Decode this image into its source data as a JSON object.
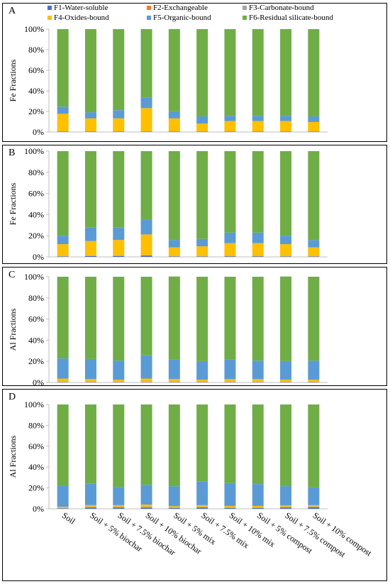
{
  "legend": {
    "items": [
      {
        "label": "F1-Water-soluble",
        "color": "#4472C4"
      },
      {
        "label": "F2-Exchangeable",
        "color": "#ED7D31"
      },
      {
        "label": "F3-Carbonate-bound",
        "color": "#A5A5A5"
      },
      {
        "label": "F4-Oxides-bound",
        "color": "#FFC000"
      },
      {
        "label": "F5-Organic-bound",
        "color": "#5B9BD5"
      },
      {
        "label": "F6-Residual silicate-bound",
        "color": "#70AD47"
      }
    ]
  },
  "chart_data": [
    {
      "type": "bar",
      "stacked": true,
      "panel_label": "A",
      "ylabel": "Fe Fractions",
      "yticks": [
        "0%",
        "20%",
        "40%",
        "60%",
        "80%",
        "100%"
      ],
      "ylim": [
        0,
        100
      ],
      "grid": false,
      "categories": [
        "Soil",
        "Soil + 5% biochar",
        "Soil + 7.5% biochar",
        "Soil + 10% biochar",
        "Soil + 5% mix",
        "Soil + 7.5% mix",
        "Soil + 10% mix",
        "Soil + 5% compost",
        "Soil + 7.5% compost",
        "Soil + 10% compost"
      ],
      "series": [
        {
          "name": "F1-Water-soluble",
          "values": [
            0.3,
            0.3,
            0.3,
            0.3,
            0.3,
            0.3,
            0.3,
            0.3,
            0.3,
            0.3
          ]
        },
        {
          "name": "F2-Exchangeable",
          "values": [
            0.2,
            0.2,
            0.2,
            0.2,
            0.2,
            0.2,
            0.2,
            0.2,
            0.2,
            0.2
          ]
        },
        {
          "name": "F3-Carbonate-bound",
          "values": [
            0.2,
            0.2,
            0.2,
            0.2,
            0.2,
            0.2,
            0.2,
            0.2,
            0.2,
            0.2
          ]
        },
        {
          "name": "F4-Oxides-bound",
          "values": [
            17,
            12.5,
            12.5,
            22.5,
            12.5,
            7.5,
            10,
            10,
            10,
            9
          ]
        },
        {
          "name": "F5-Organic-bound",
          "values": [
            7,
            6,
            8,
            10,
            7,
            7,
            5,
            5,
            5,
            5.5
          ]
        },
        {
          "name": "F6-Residual silicate-bound",
          "values": [
            75.3,
            80.8,
            78.8,
            66.8,
            79.8,
            84.8,
            84.3,
            84.3,
            84.3,
            84.8
          ]
        }
      ]
    },
    {
      "type": "bar",
      "stacked": true,
      "panel_label": "B",
      "ylabel": "Fe Fractions",
      "yticks": [
        "0%",
        "20%",
        "40%",
        "60%",
        "80%",
        "100%"
      ],
      "ylim": [
        0,
        100
      ],
      "grid": false,
      "categories": [
        "Soil",
        "Soil + 5% biochar",
        "Soil + 7.5% biochar",
        "Soil + 10% biochar",
        "Soil + 5% mix",
        "Soil + 7.5% mix",
        "Soil + 10% mix",
        "Soil + 5% compost",
        "Soil + 7.5% compost",
        "Soil + 10% compost"
      ],
      "series": [
        {
          "name": "F1-Water-soluble",
          "values": [
            0.3,
            0.8,
            0.8,
            1,
            0.3,
            0.3,
            0.5,
            0.5,
            0.3,
            0.3
          ]
        },
        {
          "name": "F2-Exchangeable",
          "values": [
            0.2,
            0.4,
            0.4,
            0.4,
            0.2,
            0.2,
            0.3,
            0.3,
            0.2,
            0.2
          ]
        },
        {
          "name": "F3-Carbonate-bound",
          "values": [
            0.2,
            0.3,
            0.3,
            0.3,
            0.2,
            0.2,
            0.2,
            0.2,
            0.2,
            0.2
          ]
        },
        {
          "name": "F4-Oxides-bound",
          "values": [
            11.3,
            13.5,
            14.5,
            19.5,
            8.3,
            9.3,
            12,
            12,
            11.3,
            8.3
          ]
        },
        {
          "name": "F5-Organic-bound",
          "values": [
            8,
            13,
            12,
            14,
            7,
            7,
            10,
            10,
            8,
            7
          ]
        },
        {
          "name": "F6-Residual silicate-bound",
          "values": [
            80,
            72,
            72,
            64.8,
            84,
            83,
            77,
            77,
            80,
            84
          ]
        }
      ]
    },
    {
      "type": "bar",
      "stacked": true,
      "panel_label": "C",
      "ylabel": "Al Fractions",
      "yticks": [
        "0%",
        "20%",
        "40%",
        "60%",
        "80%",
        "100%"
      ],
      "ylim": [
        0,
        100
      ],
      "grid": false,
      "categories": [
        "Soil",
        "Soil + 5% biochar",
        "Soil + 7.5% biochar",
        "Soil + 10% biochar",
        "Soil + 5% mix",
        "Soil + 7.5% mix",
        "Soil + 10% mix",
        "Soil + 5% compost",
        "Soil + 7.5% compost",
        "Soil + 10% compost"
      ],
      "series": [
        {
          "name": "F1-Water-soluble",
          "values": [
            0.2,
            0.2,
            0.2,
            0.2,
            0.2,
            0.2,
            0.2,
            0.2,
            0.2,
            0.2
          ]
        },
        {
          "name": "F2-Exchangeable",
          "values": [
            0.3,
            0.3,
            0.3,
            0.3,
            0.3,
            0.3,
            0.3,
            0.3,
            0.3,
            0.3
          ]
        },
        {
          "name": "F3-Carbonate-bound",
          "values": [
            0.2,
            0.2,
            0.2,
            0.2,
            0.2,
            0.2,
            0.2,
            0.2,
            0.2,
            0.2
          ]
        },
        {
          "name": "F4-Oxides-bound",
          "values": [
            3,
            2.5,
            2,
            3,
            2.5,
            2,
            2.5,
            2.5,
            2,
            2
          ]
        },
        {
          "name": "F5-Organic-bound",
          "values": [
            19,
            19,
            18,
            22,
            18.5,
            17.5,
            18.5,
            17.5,
            17.5,
            18
          ]
        },
        {
          "name": "F6-Residual silicate-bound",
          "values": [
            77.3,
            77.8,
            79.3,
            74.3,
            78.5,
            79.8,
            78.3,
            79.3,
            80,
            79.3
          ]
        }
      ]
    },
    {
      "type": "bar",
      "stacked": true,
      "panel_label": "D",
      "ylabel": "Al Fractions",
      "yticks": [
        "0%",
        "20%",
        "40%",
        "60%",
        "80%",
        "100%"
      ],
      "ylim": [
        0,
        100
      ],
      "grid": false,
      "categories": [
        "Soil",
        "Soil + 5% biochar",
        "Soil + 7.5% biochar",
        "Soil + 10% biochar",
        "Soil + 5% mix",
        "Soil + 7.5% mix",
        "Soil + 10% mix",
        "Soil + 5% compost",
        "Soil + 7.5% compost",
        "Soil + 10% compost"
      ],
      "series": [
        {
          "name": "F1-Water-soluble",
          "values": [
            0.5,
            1.2,
            1.2,
            1.2,
            0.8,
            1.2,
            0.8,
            0.8,
            1.2,
            1.5
          ]
        },
        {
          "name": "F2-Exchangeable",
          "values": [
            0.2,
            0.4,
            0.4,
            0.4,
            0.3,
            0.4,
            0.3,
            0.3,
            0.4,
            0.4
          ]
        },
        {
          "name": "F3-Carbonate-bound",
          "values": [
            0.2,
            0.4,
            0.4,
            0.4,
            0.2,
            0.4,
            0.3,
            0.3,
            0.4,
            0.4
          ]
        },
        {
          "name": "F4-Oxides-bound",
          "values": [
            1,
            1.5,
            1.5,
            2,
            1.2,
            1.5,
            1.3,
            1.3,
            1.2,
            1.2
          ]
        },
        {
          "name": "F5-Organic-bound",
          "values": [
            20.5,
            20.5,
            17.5,
            19,
            19,
            22.5,
            22,
            21,
            18.5,
            17
          ]
        },
        {
          "name": "F6-Residual silicate-bound",
          "values": [
            77.6,
            76,
            79,
            77,
            78.5,
            74,
            75.3,
            76.3,
            78.3,
            79.5
          ]
        }
      ]
    }
  ]
}
